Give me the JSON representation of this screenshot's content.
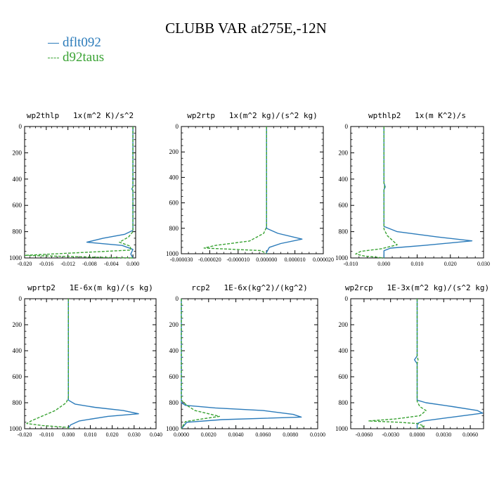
{
  "chart_title": "CLUBB VAR at275E,-12N",
  "legend": [
    {
      "label": "dflt092",
      "color": "#2b7bba",
      "dash": "none"
    },
    {
      "label": "d92taus",
      "color": "#3aa334",
      "dash": "4,2"
    }
  ],
  "chart_data": [
    {
      "type": "line",
      "title": "wp2thlp   1x(m^2 K)/s^2",
      "xlim": [
        -0.02,
        0.0005
      ],
      "xticks": [
        "-0.020",
        "-0.016",
        "-0.012",
        "-0.008",
        "-0.004",
        "0.000"
      ],
      "xtick_values": [
        -0.02,
        -0.016,
        -0.012,
        -0.008,
        -0.004,
        0.0
      ],
      "ylim": [
        0,
        1000
      ],
      "yticks": [
        "0",
        "200",
        "400",
        "600",
        "800",
        "1000"
      ],
      "series": [
        {
          "name": "dflt092",
          "points": [
            [
              0,
              0
            ],
            [
              0,
              460
            ],
            [
              -0.0002,
              475
            ],
            [
              0,
              490
            ],
            [
              0,
              790
            ],
            [
              -0.0015,
              820
            ],
            [
              -0.0055,
              850
            ],
            [
              -0.0085,
              880
            ],
            [
              -0.002,
              905
            ],
            [
              0,
              935
            ],
            [
              -0.0004,
              970
            ],
            [
              0,
              1000
            ]
          ]
        },
        {
          "name": "d92taus",
          "points": [
            [
              0,
              0
            ],
            [
              0,
              460
            ],
            [
              -0.0001,
              470
            ],
            [
              0,
              480
            ],
            [
              0,
              800
            ],
            [
              -0.0008,
              840
            ],
            [
              -0.0025,
              880
            ],
            [
              -0.0005,
              910
            ],
            [
              -0.0004,
              940
            ],
            [
              -0.01,
              960
            ],
            [
              -0.02,
              980
            ],
            [
              -0.006,
              995
            ],
            [
              0,
              1000
            ]
          ]
        }
      ]
    },
    {
      "type": "line",
      "title": "wp2rtp   1x(m^2 kg)/(s^2 kg)",
      "xlim": [
        -3e-05,
        2e-05
      ],
      "xticks": [
        "-0.000030",
        "-0.000020",
        "-0.000010",
        "0.000000",
        "0.000010",
        "0.000020"
      ],
      "xtick_values": [
        -3e-05,
        -2e-05,
        -1e-05,
        0.0,
        1e-05,
        2e-05
      ],
      "ylim": [
        0,
        1000
      ],
      "yticks": [
        "0",
        "200",
        "400",
        "600",
        "800",
        "1000"
      ],
      "series": [
        {
          "name": "dflt092",
          "points": [
            [
              0,
              0
            ],
            [
              0,
              800
            ],
            [
              4e-06,
              840
            ],
            [
              1.25e-05,
              885
            ],
            [
              5e-06,
              920
            ],
            [
              1e-06,
              950
            ],
            [
              0,
              990
            ],
            [
              0,
              1000
            ]
          ]
        },
        {
          "name": "d92taus",
          "points": [
            [
              0,
              0
            ],
            [
              0,
              790
            ],
            [
              -1e-06,
              840
            ],
            [
              -6e-06,
              900
            ],
            [
              -1.8e-05,
              935
            ],
            [
              -2.2e-05,
              955
            ],
            [
              -1.2e-05,
              965
            ],
            [
              -2e-06,
              975
            ],
            [
              0,
              1000
            ]
          ]
        }
      ]
    },
    {
      "type": "line",
      "title": "wpthlp2   1x(m K^2)/s",
      "xlim": [
        -0.01,
        0.03
      ],
      "xticks": [
        "-0.010",
        "0.000",
        "0.010",
        "0.020",
        "0.030"
      ],
      "xtick_values": [
        -0.01,
        0.0,
        0.01,
        0.02,
        0.03
      ],
      "ylim": [
        0,
        1000
      ],
      "yticks": [
        "0",
        "200",
        "400",
        "600",
        "800",
        "1000"
      ],
      "series": [
        {
          "name": "dflt092",
          "points": [
            [
              0,
              0
            ],
            [
              0,
              430
            ],
            [
              0.0004,
              460
            ],
            [
              0,
              480
            ],
            [
              0,
              760
            ],
            [
              0.004,
              800
            ],
            [
              0.016,
              840
            ],
            [
              0.0265,
              870
            ],
            [
              0.012,
              905
            ],
            [
              0.002,
              925
            ],
            [
              0,
              945
            ],
            [
              0,
              1000
            ]
          ]
        },
        {
          "name": "d92taus",
          "points": [
            [
              0,
              0
            ],
            [
              0,
              430
            ],
            [
              0.0002,
              460
            ],
            [
              0,
              480
            ],
            [
              0,
              780
            ],
            [
              0.001,
              830
            ],
            [
              0.004,
              900
            ],
            [
              -0.0008,
              930
            ],
            [
              -0.007,
              950
            ],
            [
              -0.0085,
              970
            ],
            [
              -0.006,
              985
            ],
            [
              0,
              1000
            ]
          ]
        }
      ]
    },
    {
      "type": "line",
      "title": "wprtp2   1E-6x(m kg)/(s kg)",
      "xlim": [
        -0.02,
        0.04
      ],
      "xticks": [
        "-0.020",
        "-0.010",
        "0.000",
        "0.010",
        "0.020",
        "0.030",
        "0.040"
      ],
      "xtick_values": [
        -0.02,
        -0.01,
        0.0,
        0.01,
        0.02,
        0.03,
        0.04
      ],
      "ylim": [
        0,
        1000
      ],
      "yticks": [
        "0",
        "200",
        "400",
        "600",
        "800",
        "1000"
      ],
      "series": [
        {
          "name": "dflt092",
          "points": [
            [
              0,
              0
            ],
            [
              0,
              780
            ],
            [
              0.003,
              810
            ],
            [
              0.012,
              835
            ],
            [
              0.025,
              860
            ],
            [
              0.032,
              885
            ],
            [
              0.018,
              905
            ],
            [
              0.005,
              940
            ],
            [
              0.001,
              970
            ],
            [
              0,
              995
            ],
            [
              0,
              1000
            ]
          ]
        },
        {
          "name": "d92taus",
          "points": [
            [
              0,
              0
            ],
            [
              0,
              760
            ],
            [
              -0.001,
              800
            ],
            [
              -0.006,
              860
            ],
            [
              -0.013,
              910
            ],
            [
              -0.017,
              940
            ],
            [
              -0.019,
              960
            ],
            [
              -0.012,
              975
            ],
            [
              0,
              990
            ],
            [
              0,
              1000
            ]
          ]
        }
      ]
    },
    {
      "type": "line",
      "title": "rcp2   1E-6x(kg^2)/(kg^2)",
      "xlim": [
        0.0,
        0.01
      ],
      "xticks": [
        "0.0000",
        "0.0020",
        "0.0040",
        "0.0060",
        "0.0080",
        "0.0100"
      ],
      "xtick_values": [
        0.0,
        0.002,
        0.004,
        0.006,
        0.008,
        0.01
      ],
      "ylim": [
        0,
        1000
      ],
      "yticks": [
        "0",
        "200",
        "400",
        "600",
        "800",
        "1000"
      ],
      "series": [
        {
          "name": "dflt092",
          "points": [
            [
              0,
              0
            ],
            [
              0,
              800
            ],
            [
              0.0003,
              820
            ],
            [
              0.0025,
              840
            ],
            [
              0.006,
              860
            ],
            [
              0.0082,
              890
            ],
            [
              0.0088,
              910
            ],
            [
              0.003,
              930
            ],
            [
              0.0004,
              950
            ],
            [
              0,
              1000
            ]
          ]
        },
        {
          "name": "d92taus",
          "points": [
            [
              0,
              0
            ],
            [
              0,
              780
            ],
            [
              0.0004,
              820
            ],
            [
              0.001,
              860
            ],
            [
              0.002,
              885
            ],
            [
              0.0028,
              905
            ],
            [
              0.0015,
              925
            ],
            [
              0.0003,
              945
            ],
            [
              0,
              1000
            ]
          ]
        }
      ]
    },
    {
      "type": "line",
      "title": "wp2rcp   1E-3x(m^2 kg)/(s^2 kg)",
      "xlim": [
        -0.0075,
        0.0075
      ],
      "xticks": [
        "-0.0060",
        "-0.0030",
        "0.0000",
        "0.0030",
        "0.0060"
      ],
      "xtick_values": [
        -0.006,
        -0.003,
        0.0,
        0.003,
        0.006
      ],
      "ylim": [
        0,
        1000
      ],
      "yticks": [
        "0",
        "200",
        "400",
        "600",
        "800",
        "1000"
      ],
      "series": [
        {
          "name": "dflt092",
          "points": [
            [
              0,
              0
            ],
            [
              0,
              440
            ],
            [
              -0.0003,
              470
            ],
            [
              0,
              500
            ],
            [
              0,
              780
            ],
            [
              0.001,
              800
            ],
            [
              0.004,
              830
            ],
            [
              0.0068,
              860
            ],
            [
              0.0074,
              880
            ],
            [
              0.004,
              910
            ],
            [
              0.0007,
              940
            ],
            [
              0,
              960
            ],
            [
              0,
              1000
            ]
          ]
        },
        {
          "name": "d92taus",
          "points": [
            [
              0,
              0
            ],
            [
              0,
              440
            ],
            [
              0.0001,
              470
            ],
            [
              0,
              500
            ],
            [
              0,
              790
            ],
            [
              0.0003,
              830
            ],
            [
              0.001,
              860
            ],
            [
              0.0003,
              900
            ],
            [
              -0.0025,
              925
            ],
            [
              -0.0055,
              940
            ],
            [
              -0.002,
              950
            ],
            [
              0,
              960
            ],
            [
              0.0008,
              980
            ],
            [
              0,
              1000
            ]
          ]
        }
      ]
    }
  ]
}
